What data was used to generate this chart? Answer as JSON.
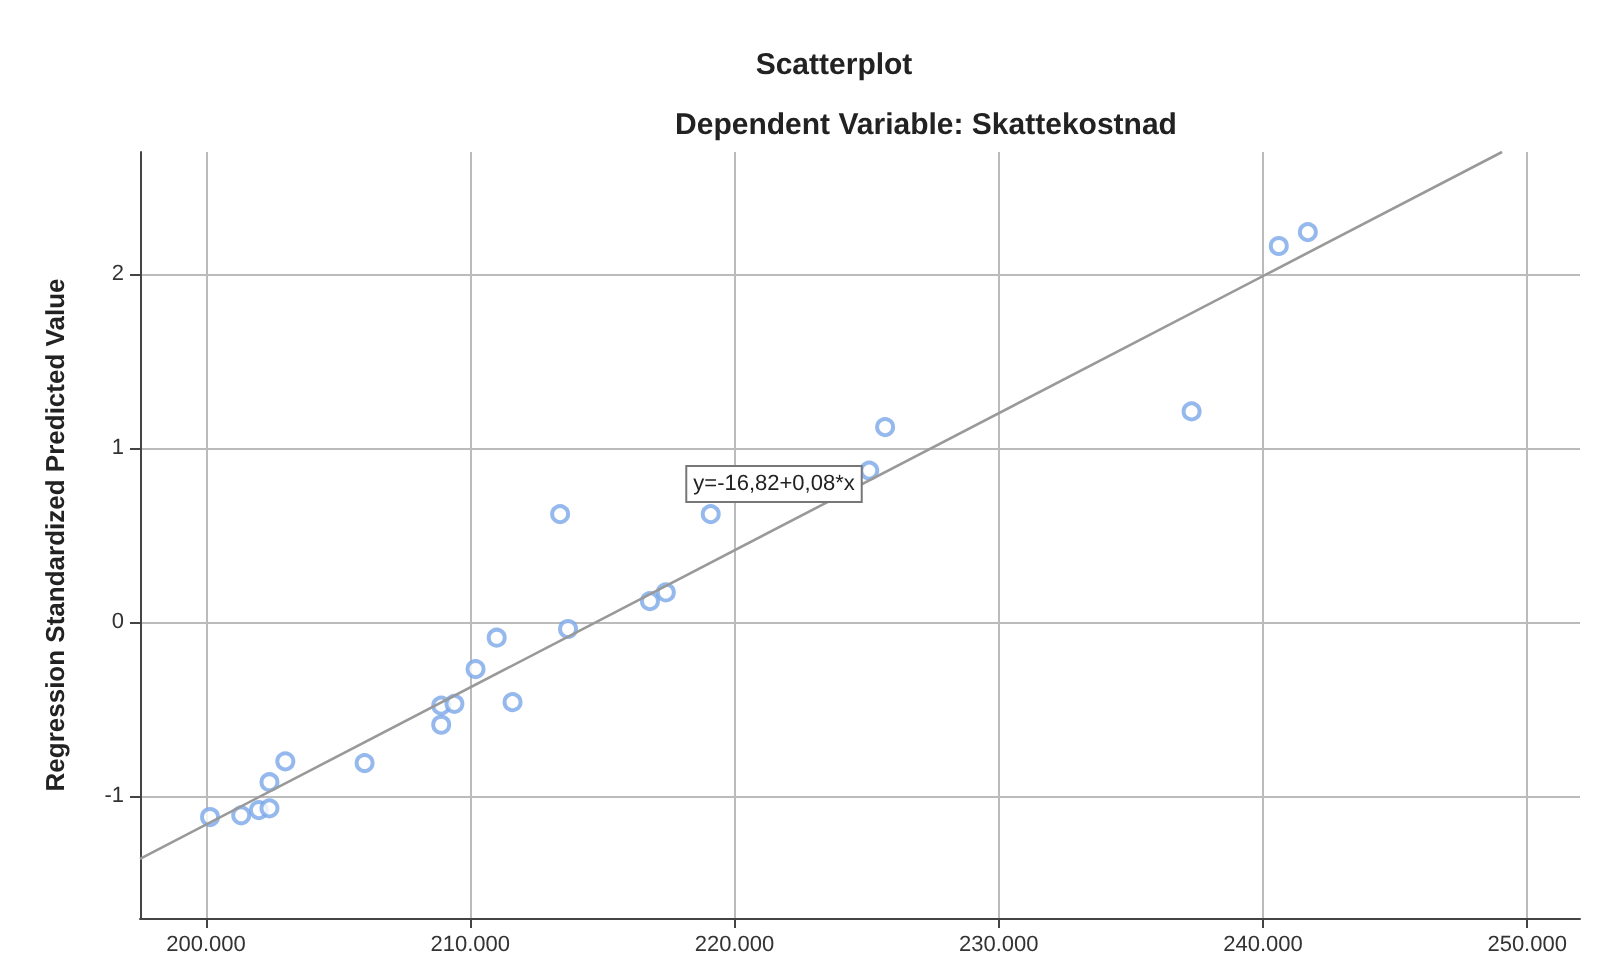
{
  "chart_data": {
    "type": "scatter",
    "title": "Scatterplot",
    "subtitle": "Dependent Variable: Skattekostnad",
    "ylabel": "Regression Standardized Predicted Value",
    "xlim": [
      197500,
      252000
    ],
    "ylim": [
      -1.7,
      2.7
    ],
    "xticks": [
      {
        "value": 200000,
        "label": "200.000"
      },
      {
        "value": 210000,
        "label": "210.000"
      },
      {
        "value": 220000,
        "label": "220.000"
      },
      {
        "value": 230000,
        "label": "230.000"
      },
      {
        "value": 240000,
        "label": "240.000"
      },
      {
        "value": 250000,
        "label": "250.000"
      }
    ],
    "yticks": [
      -1,
      0,
      1,
      2
    ],
    "grid": true,
    "series": [
      {
        "color": "#7aa7e8",
        "marker": "circle",
        "x": [
          200150,
          201330,
          202000,
          202400,
          202400,
          203000,
          206000,
          208900,
          208900,
          209400,
          210200,
          211000,
          211600,
          213700,
          213400,
          216800,
          217400,
          219100,
          225100,
          225700,
          237300,
          240600,
          241700
        ],
        "values": [
          -1.12,
          -1.11,
          -1.08,
          -1.07,
          -0.92,
          -0.8,
          -0.81,
          -0.59,
          -0.48,
          -0.47,
          -0.27,
          -0.09,
          -0.46,
          -0.04,
          0.62,
          0.12,
          0.17,
          0.62,
          0.87,
          1.12,
          1.21,
          2.16,
          2.24
        ]
      },
      {
        "type": "line",
        "color": "#999999",
        "marker": "none",
        "x": [
          197500,
          249050
        ],
        "values": [
          -1.36,
          2.7
        ]
      }
    ],
    "annotations": [
      "y=-16,82+0,08*x"
    ]
  }
}
